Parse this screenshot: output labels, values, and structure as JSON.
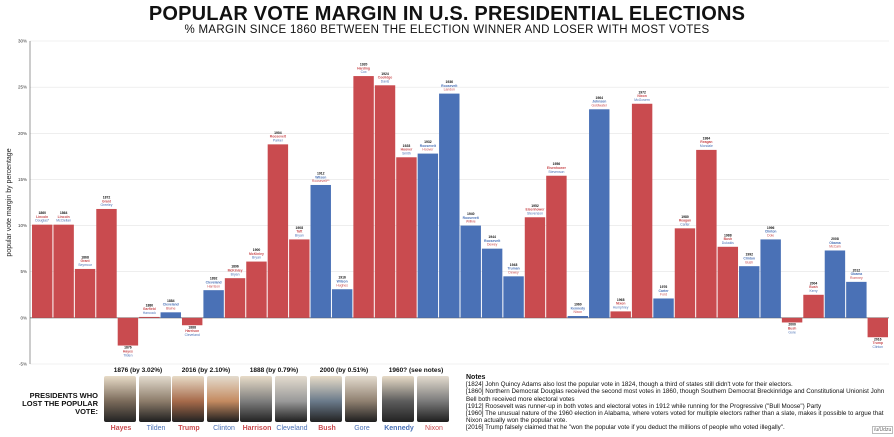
{
  "title": "POPULAR VOTE MARGIN IN U.S. PRESIDENTIAL ELECTIONS",
  "subtitle": "% MARGIN SINCE 1860 BETWEEN THE ELECTION WINNER AND LOSER WITH MOST VOTES",
  "colors": {
    "republican": "#c94b4f",
    "democrat": "#4a71b6",
    "axis": "#333333",
    "grid": "#e4e4e4"
  },
  "chart_data": {
    "type": "bar",
    "ylabel": "popular vote margin by percentage",
    "ylim": [
      -5,
      30
    ],
    "yticks": [
      -5,
      0,
      5,
      10,
      15,
      20,
      25,
      30
    ],
    "ytick_labels": [
      "-5%",
      "0%",
      "5%",
      "10%",
      "15%",
      "20%",
      "25%",
      "30%"
    ],
    "bars": [
      {
        "year": "1860",
        "winner": "Lincoln",
        "loser": "Douglas*",
        "party": "R",
        "value": 10.1
      },
      {
        "year": "1864",
        "winner": "Lincoln",
        "loser": "McClellan",
        "party": "R",
        "value": 10.1
      },
      {
        "year": "1868",
        "winner": "Grant",
        "loser": "Seymour",
        "party": "R",
        "value": 5.3
      },
      {
        "year": "1872",
        "winner": "Grant",
        "loser": "Greeley",
        "party": "R",
        "value": 11.8
      },
      {
        "year": "1876",
        "winner": "Hayes",
        "loser": "Tilden",
        "party": "R",
        "value": -3.0
      },
      {
        "year": "1880",
        "winner": "Garfield",
        "loser": "Hancock",
        "party": "R",
        "value": 0.1
      },
      {
        "year": "1884",
        "winner": "Cleveland",
        "loser": "Blaine",
        "party": "D",
        "value": 0.6
      },
      {
        "year": "1888",
        "winner": "Harrison",
        "loser": "Cleveland",
        "party": "R",
        "value": -0.8
      },
      {
        "year": "1892",
        "winner": "Cleveland",
        "loser": "Harrison",
        "party": "D",
        "value": 3.0
      },
      {
        "year": "1896",
        "winner": "McKinley",
        "loser": "Bryan",
        "party": "R",
        "value": 4.3
      },
      {
        "year": "1900",
        "winner": "McKinley",
        "loser": "Bryan",
        "party": "R",
        "value": 6.1
      },
      {
        "year": "1904",
        "winner": "Roosevelt",
        "loser": "Parker",
        "party": "R",
        "value": 18.8
      },
      {
        "year": "1908",
        "winner": "Taft",
        "loser": "Bryan",
        "party": "R",
        "value": 8.5
      },
      {
        "year": "1912",
        "winner": "Wilson",
        "loser": "Roosevelt**",
        "party": "D",
        "value": 14.4
      },
      {
        "year": "1916",
        "winner": "Wilson",
        "loser": "Hughes",
        "party": "D",
        "value": 3.1
      },
      {
        "year": "1920",
        "winner": "Harding",
        "loser": "Cox",
        "party": "R",
        "value": 26.2
      },
      {
        "year": "1924",
        "winner": "Coolidge",
        "loser": "Davis",
        "party": "R",
        "value": 25.2
      },
      {
        "year": "1928",
        "winner": "Hoover",
        "loser": "Smith",
        "party": "R",
        "value": 17.4
      },
      {
        "year": "1932",
        "winner": "Roosevelt",
        "loser": "Hoover",
        "party": "D",
        "value": 17.8
      },
      {
        "year": "1936",
        "winner": "Roosevelt",
        "loser": "Landon",
        "party": "D",
        "value": 24.3
      },
      {
        "year": "1940",
        "winner": "Roosevelt",
        "loser": "Willkie",
        "party": "D",
        "value": 10.0
      },
      {
        "year": "1944",
        "winner": "Roosevelt",
        "loser": "Dewey",
        "party": "D",
        "value": 7.5
      },
      {
        "year": "1948",
        "winner": "Truman",
        "loser": "Dewey",
        "party": "D",
        "value": 4.5
      },
      {
        "year": "1952",
        "winner": "Eisenhower",
        "loser": "Stevenson",
        "party": "R",
        "value": 10.9
      },
      {
        "year": "1956",
        "winner": "Eisenhower",
        "loser": "Stevenson",
        "party": "R",
        "value": 15.4
      },
      {
        "year": "1960",
        "winner": "Kennedy",
        "loser": "Nixon",
        "party": "D",
        "value": 0.2
      },
      {
        "year": "1964",
        "winner": "Johnson",
        "loser": "Goldwater",
        "party": "D",
        "value": 22.6
      },
      {
        "year": "1968",
        "winner": "Nixon",
        "loser": "Humphrey",
        "party": "R",
        "value": 0.7
      },
      {
        "year": "1972",
        "winner": "Nixon",
        "loser": "McGovern",
        "party": "R",
        "value": 23.2
      },
      {
        "year": "1976",
        "winner": "Carter",
        "loser": "Ford",
        "party": "D",
        "value": 2.1
      },
      {
        "year": "1980",
        "winner": "Reagan",
        "loser": "Carter",
        "party": "R",
        "value": 9.7
      },
      {
        "year": "1984",
        "winner": "Reagan",
        "loser": "Mondale",
        "party": "R",
        "value": 18.2
      },
      {
        "year": "1988",
        "winner": "Bush",
        "loser": "Dukakis",
        "party": "R",
        "value": 7.7
      },
      {
        "year": "1992",
        "winner": "Clinton",
        "loser": "Bush",
        "party": "D",
        "value": 5.6
      },
      {
        "year": "1996",
        "winner": "Clinton",
        "loser": "Dole",
        "party": "D",
        "value": 8.5
      },
      {
        "year": "2000",
        "winner": "Bush",
        "loser": "Gore",
        "party": "R",
        "value": -0.5
      },
      {
        "year": "2004",
        "winner": "Bush",
        "loser": "Kerry",
        "party": "R",
        "value": 2.5
      },
      {
        "year": "2008",
        "winner": "Obama",
        "loser": "McCain",
        "party": "D",
        "value": 7.3
      },
      {
        "year": "2012",
        "winner": "Obama",
        "loser": "Romney",
        "party": "D",
        "value": 3.9
      },
      {
        "year": "2016",
        "winner": "Trump",
        "loser": "Clinton",
        "party": "R",
        "value": -2.1
      }
    ]
  },
  "losers_panel": {
    "heading": "PRESIDENTS WHO LOST THE POPULAR VOTE:",
    "cards": [
      {
        "header": "1876 (by 3.02%)",
        "winner": "Hayes",
        "loser": "Tilden"
      },
      {
        "header": "2016 (by 2.10%)",
        "winner": "Trump",
        "loser": "Clinton"
      },
      {
        "header": "1888 (by 0.79%)",
        "winner": "Harrison",
        "loser": "Cleveland"
      },
      {
        "header": "2000 (by 0.51%)",
        "winner": "Bush",
        "loser": "Gore"
      },
      {
        "header": "1960? (see notes)",
        "winner": "Kennedy",
        "loser": "Nixon"
      }
    ]
  },
  "notes": {
    "title": "Notes",
    "lines": [
      "[1824] John Quincy Adams also lost the popular vote in 1824, though a third of states still didn't vote for their electors.",
      "[1860] Northern Democrat Douglas received the second most votes in 1860, though Southern Democrat Breckinridge and Constitutional Unionist John Bell both received more electoral votes",
      "[1912] Roosevelt was runner-up in both votes and electoral votes in 1912 while running for the Progressive (\"Bull Moose\") Party",
      "[1960] The unusual nature of the 1960 election in Alabama, where voters voted for multiple electors rather than a slate, makes it possible to argue that Nixon actually won the popular vote.",
      "[2016] Trump falsely claimed that he \"won the popular vote if you deduct the millions of people who voted illegally\"."
    ]
  },
  "credit": "/u/Udzu"
}
